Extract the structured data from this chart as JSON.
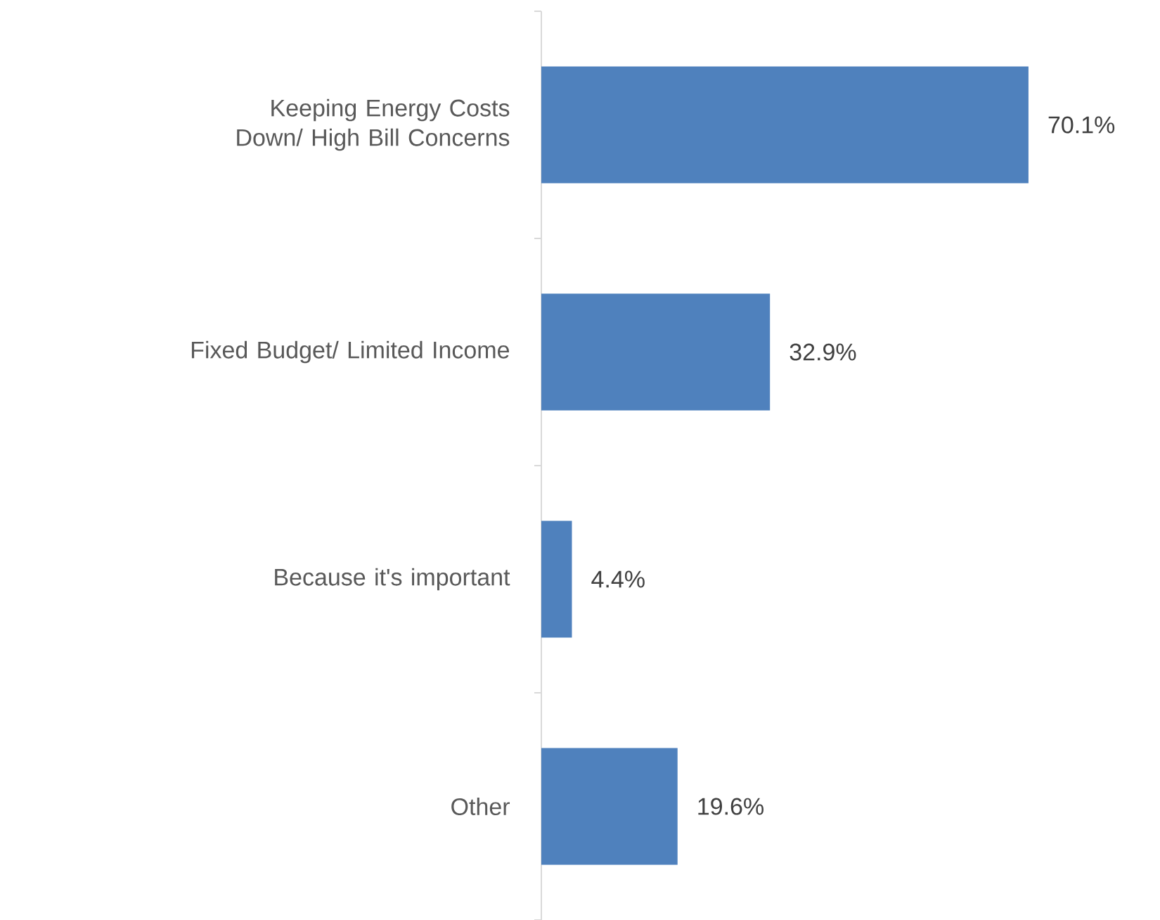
{
  "chart_data": {
    "type": "bar",
    "orientation": "horizontal",
    "categories": [
      "Keeping Energy Costs Down/ High Bill Concerns",
      "Fixed Budget/ Limited Income",
      "Because it's important",
      "Other"
    ],
    "values": [
      70.1,
      32.9,
      4.4,
      19.6
    ],
    "value_labels": [
      "70.1%",
      "32.9%",
      "4.4%",
      "19.6%"
    ],
    "color": "#4f81bd"
  }
}
